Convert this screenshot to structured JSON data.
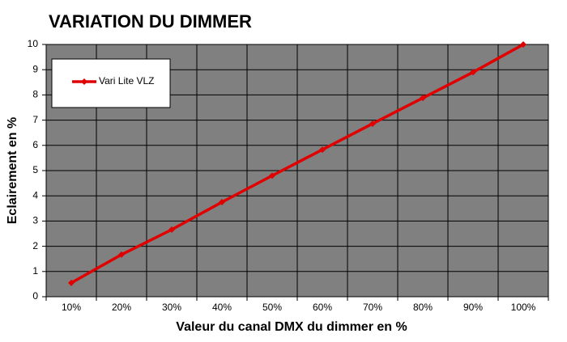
{
  "chart_data": {
    "type": "line",
    "title": "VARIATION DU DIMMER",
    "x_label": "Valeur du canal DMX du dimmer en %",
    "y_label": "Eclairement en %",
    "categories": [
      "10%",
      "20%",
      "30%",
      "40%",
      "50%",
      "60%",
      "70%",
      "80%",
      "90%",
      "100%"
    ],
    "series": [
      {
        "name": "Vari Lite VLZ",
        "color": "#e00000",
        "values": [
          0.55,
          1.67,
          2.66,
          3.75,
          4.8,
          5.83,
          6.86,
          7.88,
          8.9,
          10
        ]
      }
    ],
    "ylim": [
      0,
      10
    ],
    "yticks": [
      0,
      1,
      2,
      3,
      4,
      5,
      6,
      7,
      8,
      9,
      10
    ],
    "grid": true,
    "legend": "upper left"
  }
}
